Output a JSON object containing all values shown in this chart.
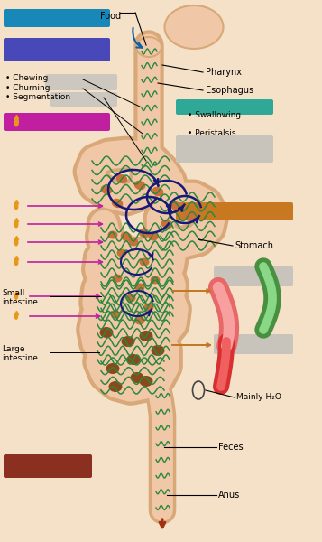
{
  "bg_color": "#f5e0c8",
  "color_food_bar": "#1888b8",
  "color_purple_bar": "#4848b8",
  "color_magenta_bar": "#c020a0",
  "color_teal_bar": "#30a898",
  "color_orange_bar": "#c87820",
  "color_brown_bar": "#8b3020",
  "color_gray_box1": "#ccc8c0",
  "color_gray_box2": "#c8c4bc",
  "color_intes_fill": "#f0c8a8",
  "color_intes_out": "#d8a878",
  "color_green": "#2a8840",
  "color_dblue": "#181878",
  "color_magenta_arr": "#c020a0",
  "color_orange_arr": "#c07820",
  "color_flame": "#e89818",
  "color_pink": "#e86868",
  "color_green_tube": "#489040",
  "color_red_tube": "#d83030",
  "labels": {
    "food": "Food",
    "pharynx": "Pharynx",
    "esophagus": "Esophagus",
    "chewing": "• Chewing",
    "churning": "• Churning",
    "segmentation": "• Segmentation",
    "swallowing": "• Swallowing",
    "peristalsis": "• Peristalsis",
    "stomach": "Stomach",
    "small_intestine": "Small\nintestine",
    "large_intestine": "Large\nintestine",
    "mainly_h2o": "Mainly H₂O",
    "feces": "Feces",
    "anus": "Anus"
  }
}
